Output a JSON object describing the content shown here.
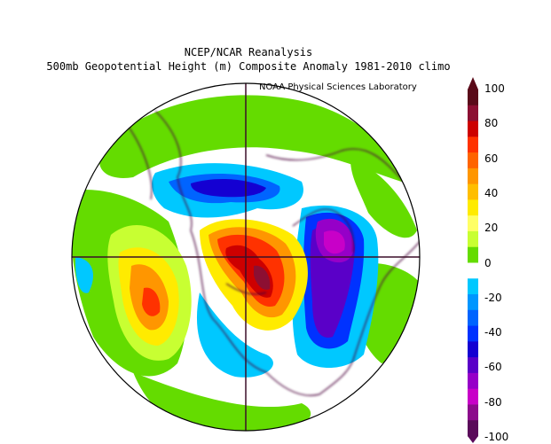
{
  "title": {
    "line1": "NCEP/NCAR Reanalysis",
    "line2": "500mb Geopotential Height (m) Composite Anomaly 1981-2010 climo"
  },
  "credit": "NOAA Physical Sciences Laboratory",
  "colorbar": {
    "labels": [
      "100",
      "80",
      "60",
      "40",
      "20",
      "0",
      "-20",
      "-40",
      "-60",
      "-80",
      "-100"
    ],
    "colors": [
      "#5a0a19",
      "#8c0f32",
      "#cd0000",
      "#ff3200",
      "#ff6400",
      "#ff9600",
      "#ffbe00",
      "#ffeb00",
      "#ffff64",
      "#c8ff32",
      "#64dc00",
      "#ffffff",
      "#00c8ff",
      "#0096ff",
      "#0064ff",
      "#0032ff",
      "#1400d2",
      "#5a00c8",
      "#9600c8",
      "#c800c8",
      "#8c0a8c",
      "#5a0a5a"
    ]
  },
  "map": {
    "projection": "north-polar-stereographic",
    "anomalies": [
      {
        "name": "north-pacific-ridge",
        "sign": "positive",
        "peak": 80
      },
      {
        "name": "arctic-ridge",
        "sign": "positive",
        "peak": 100
      },
      {
        "name": "eurasian-trough",
        "sign": "negative",
        "peak": -100
      },
      {
        "name": "north-atlantic-trough",
        "sign": "negative",
        "peak": -80
      },
      {
        "name": "asian-trough",
        "sign": "negative",
        "peak": -60
      }
    ]
  }
}
